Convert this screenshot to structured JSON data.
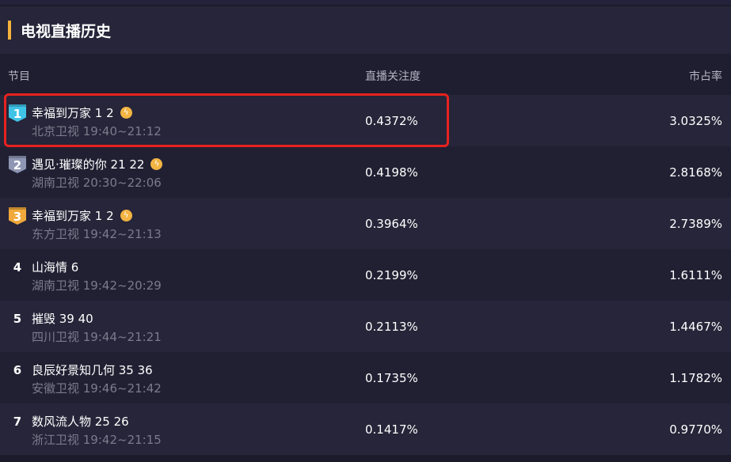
{
  "title": "电视直播历史",
  "columns": {
    "program": "节目",
    "attention": "直播关注度",
    "share": "市占率"
  },
  "colors": {
    "accent": "#f5b33c",
    "rank1": "#3fc4e6",
    "rank2": "#8e96b4",
    "rank3": "#f0a93a",
    "highlight": "#e8221f"
  },
  "rows": [
    {
      "rank": "1",
      "title": "幸福到万家 1 2",
      "live": true,
      "channel_time": "北京卫视 19:40~21:12",
      "attention": "0.4372%",
      "share": "3.0325%"
    },
    {
      "rank": "2",
      "title": "遇见·璀璨的你 21 22",
      "live": true,
      "channel_time": "湖南卫视 20:30~22:06",
      "attention": "0.4198%",
      "share": "2.8168%"
    },
    {
      "rank": "3",
      "title": "幸福到万家 1 2",
      "live": true,
      "channel_time": "东方卫视 19:42~21:13",
      "attention": "0.3964%",
      "share": "2.7389%"
    },
    {
      "rank": "4",
      "title": "山海情 6",
      "live": false,
      "channel_time": "湖南卫视 19:42~20:29",
      "attention": "0.2199%",
      "share": "1.6111%"
    },
    {
      "rank": "5",
      "title": "摧毁 39 40",
      "live": false,
      "channel_time": "四川卫视 19:44~21:21",
      "attention": "0.2113%",
      "share": "1.4467%"
    },
    {
      "rank": "6",
      "title": "良辰好景知几何 35 36",
      "live": false,
      "channel_time": "安徽卫视 19:46~21:42",
      "attention": "0.1735%",
      "share": "1.1782%"
    },
    {
      "rank": "7",
      "title": "数风流人物 25 26",
      "live": false,
      "channel_time": "浙江卫视 19:42~21:15",
      "attention": "0.1417%",
      "share": "0.9770%"
    }
  ]
}
